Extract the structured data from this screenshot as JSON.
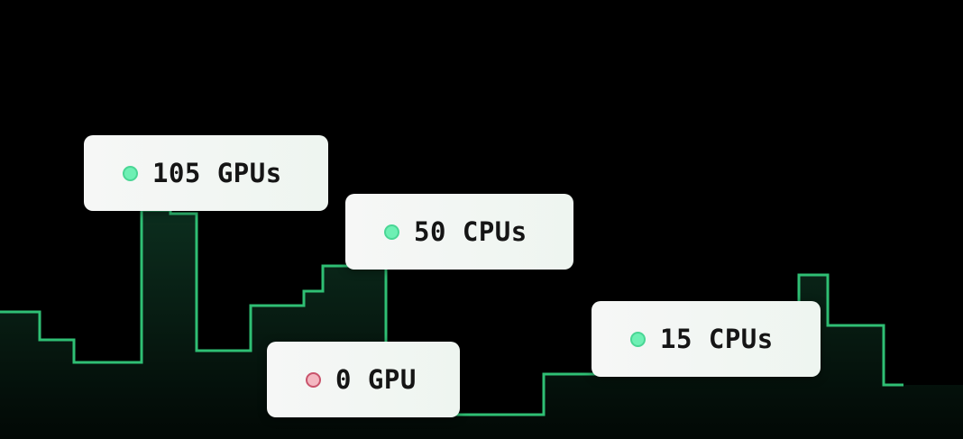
{
  "colors": {
    "line": "#2fbf74",
    "fill_top": "#0b2a1b",
    "background": "#000000",
    "ok_dot": "#6ef0b4",
    "off_dot": "#f4b7c1"
  },
  "cards": [
    {
      "label": "105 GPUs",
      "status": "active",
      "icon": "status-dot-green"
    },
    {
      "label": "50 CPUs",
      "status": "active",
      "icon": "status-dot-green"
    },
    {
      "label": "0 GPU",
      "status": "inactive",
      "icon": "status-dot-red"
    },
    {
      "label": "15 CPUs",
      "status": "active",
      "icon": "status-dot-green"
    }
  ]
}
